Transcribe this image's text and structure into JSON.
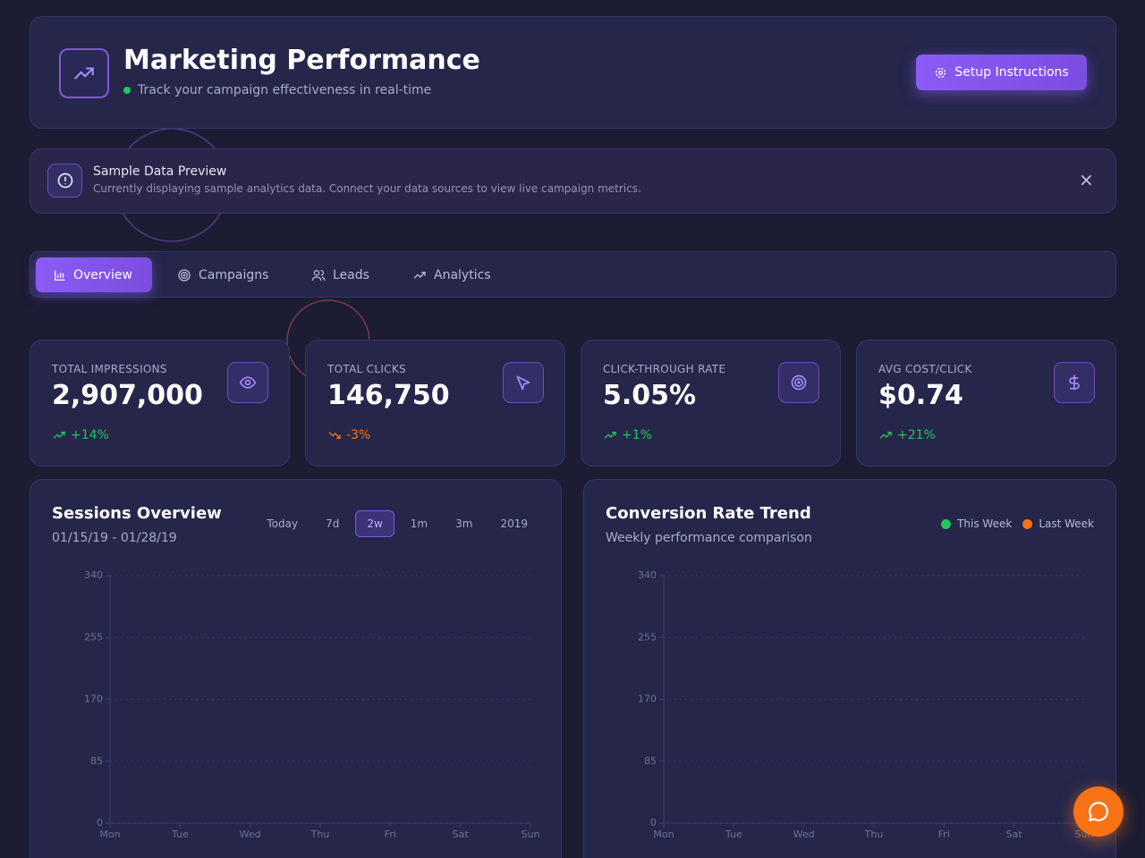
{
  "header": {
    "title": "Marketing Performance",
    "subtitle": "Track your campaign effectiveness in real-time",
    "button": "Setup Instructions"
  },
  "banner": {
    "title": "Sample Data Preview",
    "text": "Currently displaying sample analytics data. Connect your data sources to view live campaign metrics.",
    "close": "×"
  },
  "tabs": [
    "Overview",
    "Campaigns",
    "Leads",
    "Analytics"
  ],
  "kpis": [
    {
      "label": "TOTAL IMPRESSIONS",
      "value": "2,907,000",
      "change": "+14%"
    },
    {
      "label": "TOTAL CLICKS",
      "value": "146,750",
      "change": "-3%"
    },
    {
      "label": "CLICK-THROUGH RATE",
      "value": "5.05%",
      "change": "+1%"
    },
    {
      "label": "AVG COST/CLICK",
      "value": "$0.74",
      "change": "+21%"
    }
  ],
  "charts": [
    {
      "title": "Sessions Overview",
      "subtitle": "01/15/19 - 01/28/19",
      "ranges": [
        "Today",
        "7d",
        "2w",
        "1m",
        "3m",
        "2019"
      ],
      "active_range": "2w",
      "categories": [
        "Mon",
        "Tue",
        "Wed",
        "Thu",
        "Fri",
        "Sat",
        "Sun"
      ],
      "ylim": [
        0,
        340
      ],
      "yticks": [
        0,
        85,
        170,
        255,
        340
      ]
    },
    {
      "title": "Conversion Rate Trend",
      "subtitle": "Weekly performance comparison",
      "legend": [
        {
          "name": "This Week",
          "color": "#22c55e"
        },
        {
          "name": "Last Week",
          "color": "#f97316"
        }
      ],
      "categories": [
        "Mon",
        "Tue",
        "Wed",
        "Thu",
        "Fri",
        "Sat",
        "Sun"
      ],
      "ylim": [
        0,
        340
      ],
      "yticks": [
        0,
        85,
        170,
        255,
        340
      ]
    }
  ]
}
